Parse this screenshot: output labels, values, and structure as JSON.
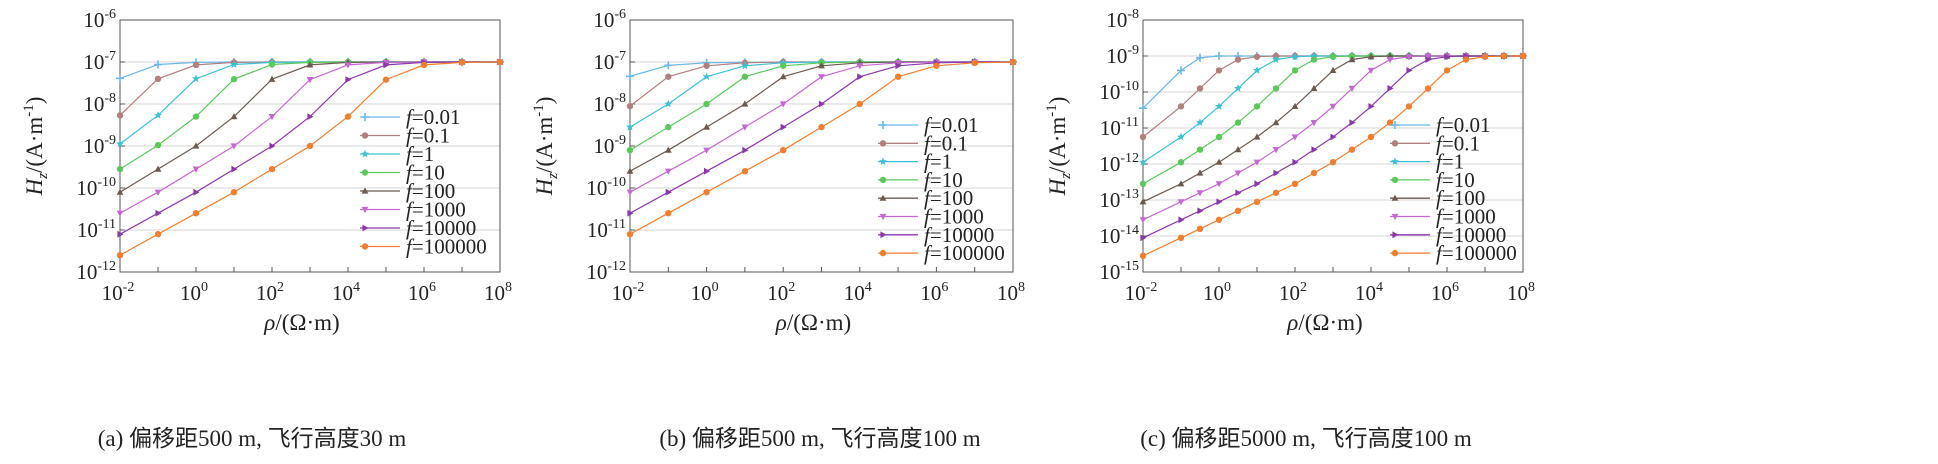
{
  "legend_prefix": "f",
  "legend_sep": "=",
  "series_styles": [
    {
      "color": "#6cb7e4",
      "marker": "plus"
    },
    {
      "color": "#b08080",
      "marker": "circle"
    },
    {
      "color": "#3fc0d2",
      "marker": "star"
    },
    {
      "color": "#5cc85c",
      "marker": "circle"
    },
    {
      "color": "#6b5a50",
      "marker": "triangle"
    },
    {
      "color": "#c36ad0",
      "marker": "tri-down"
    },
    {
      "color": "#8a3aa8",
      "marker": "tri-right"
    },
    {
      "color": "#f07f32",
      "marker": "circle"
    }
  ],
  "chart_data": [
    {
      "type": "line",
      "caption": "(a) 偏移距500 m, 飞行高度30 m",
      "xlabel_sym": "ρ",
      "xlabel_unit": "/(Ω·m)",
      "ylabel_sym": "H",
      "ylabel_sub": "z",
      "ylabel_unit": "/(A·m",
      "ylabel_sup": "-1",
      "ylabel_close": ")",
      "x_scale": "log",
      "y_scale": "log",
      "xlim_exp": [
        -2,
        8
      ],
      "ylim_exp": [
        -12,
        -6
      ],
      "x_tick_exps": [
        "-2",
        "0",
        "2",
        "4",
        "6",
        "8"
      ],
      "y_tick_exps": [
        "-12",
        "-11",
        "-10",
        "-9",
        "-8",
        "-7",
        "-6"
      ],
      "tick_base": "10",
      "legend_position": "center-right",
      "grid": "horizontal",
      "x_log_points": [
        -2,
        -1,
        0,
        1,
        2,
        3,
        4,
        5,
        6,
        7,
        8
      ],
      "series": [
        {
          "name": "0.01",
          "y_log": [
            -7.39,
            -7.06,
            -7.01,
            -7.0,
            -7.0,
            -7.0,
            -7.0,
            -7.0,
            -7.0,
            -7.0,
            -7.0
          ]
        },
        {
          "name": "0.1",
          "y_log": [
            -8.27,
            -7.4,
            -7.07,
            -7.01,
            -7.0,
            -7.0,
            -7.0,
            -7.0,
            -7.0,
            -7.0,
            -7.0
          ]
        },
        {
          "name": "1",
          "y_log": [
            -8.95,
            -8.27,
            -7.4,
            -7.06,
            -7.01,
            -7.0,
            -7.0,
            -7.0,
            -7.0,
            -7.0,
            -7.0
          ]
        },
        {
          "name": "10",
          "y_log": [
            -9.55,
            -8.98,
            -8.3,
            -7.41,
            -7.06,
            -7.01,
            -7.0,
            -7.0,
            -7.0,
            -7.0,
            -7.0
          ]
        },
        {
          "name": "100",
          "y_log": [
            -10.1,
            -9.55,
            -9.0,
            -8.3,
            -7.41,
            -7.07,
            -7.01,
            -7.0,
            -7.0,
            -7.0,
            -7.0
          ]
        },
        {
          "name": "1000",
          "y_log": [
            -10.6,
            -10.1,
            -9.55,
            -9.0,
            -8.3,
            -7.42,
            -7.07,
            -7.01,
            -7.0,
            -7.0,
            -7.0
          ]
        },
        {
          "name": "10000",
          "y_log": [
            -11.1,
            -10.6,
            -10.1,
            -9.55,
            -9.0,
            -8.3,
            -7.42,
            -7.07,
            -7.01,
            -7.0,
            -7.0
          ]
        },
        {
          "name": "100000",
          "y_log": [
            -11.6,
            -11.1,
            -10.6,
            -10.1,
            -9.55,
            -9.0,
            -8.3,
            -7.42,
            -7.07,
            -7.01,
            -7.0
          ]
        }
      ]
    },
    {
      "type": "line",
      "caption": "(b) 偏移距500 m, 飞行高度100 m",
      "xlabel_sym": "ρ",
      "xlabel_unit": "/(Ω·m)",
      "ylabel_sym": "H",
      "ylabel_sub": "z",
      "ylabel_unit": "/(A·m",
      "ylabel_sup": "-1",
      "ylabel_close": ")",
      "x_scale": "log",
      "y_scale": "log",
      "xlim_exp": [
        -2,
        8
      ],
      "ylim_exp": [
        -12,
        -6
      ],
      "x_tick_exps": [
        "-2",
        "0",
        "2",
        "4",
        "6",
        "8"
      ],
      "y_tick_exps": [
        "-12",
        "-11",
        "-10",
        "-9",
        "-8",
        "-7",
        "-6"
      ],
      "tick_base": "10",
      "legend_position": "lower-right",
      "grid": "horizontal",
      "x_log_points": [
        -2,
        -1,
        0,
        1,
        2,
        3,
        4,
        5,
        6,
        7,
        8
      ],
      "series": [
        {
          "name": "0.01",
          "y_log": [
            -7.34,
            -7.08,
            -7.02,
            -7.01,
            -7.0,
            -7.0,
            -7.0,
            -7.0,
            -7.0,
            -7.0,
            -7.0
          ]
        },
        {
          "name": "0.1",
          "y_log": [
            -8.05,
            -7.35,
            -7.09,
            -7.02,
            -7.0,
            -7.0,
            -7.0,
            -7.0,
            -7.0,
            -7.0,
            -7.0
          ]
        },
        {
          "name": "1",
          "y_log": [
            -8.55,
            -8.0,
            -7.35,
            -7.09,
            -7.02,
            -7.0,
            -7.0,
            -7.0,
            -7.0,
            -7.0,
            -7.0
          ]
        },
        {
          "name": "10",
          "y_log": [
            -9.1,
            -8.55,
            -8.0,
            -7.35,
            -7.09,
            -7.02,
            -7.0,
            -7.0,
            -7.0,
            -7.0,
            -7.0
          ]
        },
        {
          "name": "100",
          "y_log": [
            -9.6,
            -9.1,
            -8.55,
            -8.0,
            -7.35,
            -7.09,
            -7.02,
            -7.0,
            -7.0,
            -7.0,
            -7.0
          ]
        },
        {
          "name": "1000",
          "y_log": [
            -10.1,
            -9.6,
            -9.1,
            -8.55,
            -8.0,
            -7.35,
            -7.09,
            -7.02,
            -7.0,
            -7.0,
            -7.0
          ]
        },
        {
          "name": "10000",
          "y_log": [
            -10.6,
            -10.1,
            -9.6,
            -9.1,
            -8.55,
            -8.0,
            -7.35,
            -7.09,
            -7.02,
            -7.0,
            -7.0
          ]
        },
        {
          "name": "100000",
          "y_log": [
            -11.1,
            -10.6,
            -10.1,
            -9.6,
            -9.1,
            -8.55,
            -8.0,
            -7.35,
            -7.09,
            -7.02,
            -7.0
          ]
        }
      ]
    },
    {
      "type": "line",
      "caption": "(c) 偏移距5000 m, 飞行高度100 m",
      "xlabel_sym": "ρ",
      "xlabel_unit": "/(Ω·m)",
      "ylabel_sym": "H",
      "ylabel_sub": "z",
      "ylabel_unit": "/(A·m",
      "ylabel_sup": "-1",
      "ylabel_close": ")",
      "x_scale": "log",
      "y_scale": "log",
      "xlim_exp": [
        -2,
        8
      ],
      "ylim_exp": [
        -15,
        -8
      ],
      "x_tick_exps": [
        "-2",
        "0",
        "2",
        "4",
        "6",
        "8"
      ],
      "y_tick_exps": [
        "-15",
        "-14",
        "-13",
        "-12",
        "-11",
        "-10",
        "-9",
        "-8"
      ],
      "tick_base": "10",
      "legend_position": "lower-right",
      "grid": "horizontal",
      "x_log_points": [
        -2,
        -1,
        -0.5,
        0,
        0.5,
        1,
        1.5,
        2,
        2.5,
        3,
        3.5,
        4,
        4.5,
        5,
        5.5,
        6,
        6.5,
        7,
        7.5,
        8
      ],
      "series": [
        {
          "name": "0.01",
          "y_log": [
            -10.45,
            -9.4,
            -9.05,
            -9.0,
            -9.0,
            -9.0,
            -9.0,
            -9.0,
            -9.0,
            -9.0,
            -9.0,
            -9.0,
            -9.0,
            -9.0,
            -9.0,
            -9.0,
            -9.0,
            -9.0,
            -9.0,
            -9.0
          ]
        },
        {
          "name": "0.1",
          "y_log": [
            -11.25,
            -10.4,
            -9.9,
            -9.4,
            -9.1,
            -9.02,
            -9.0,
            -9.0,
            -9.0,
            -9.0,
            -9.0,
            -9.0,
            -9.0,
            -9.0,
            -9.0,
            -9.0,
            -9.0,
            -9.0,
            -9.0,
            -9.0
          ]
        },
        {
          "name": "1",
          "y_log": [
            -11.95,
            -11.25,
            -10.85,
            -10.4,
            -9.9,
            -9.4,
            -9.1,
            -9.02,
            -9.0,
            -9.0,
            -9.0,
            -9.0,
            -9.0,
            -9.0,
            -9.0,
            -9.0,
            -9.0,
            -9.0,
            -9.0,
            -9.0
          ]
        },
        {
          "name": "10",
          "y_log": [
            -12.55,
            -11.95,
            -11.6,
            -11.25,
            -10.85,
            -10.4,
            -9.9,
            -9.4,
            -9.1,
            -9.02,
            -9.0,
            -9.0,
            -9.0,
            -9.0,
            -9.0,
            -9.0,
            -9.0,
            -9.0,
            -9.0,
            -9.0
          ]
        },
        {
          "name": "100",
          "y_log": [
            -13.05,
            -12.55,
            -12.25,
            -11.95,
            -11.6,
            -11.25,
            -10.85,
            -10.4,
            -9.9,
            -9.4,
            -9.1,
            -9.02,
            -9.0,
            -9.0,
            -9.0,
            -9.0,
            -9.0,
            -9.0,
            -9.0,
            -9.0
          ]
        },
        {
          "name": "1000",
          "y_log": [
            -13.55,
            -13.05,
            -12.8,
            -12.55,
            -12.25,
            -11.95,
            -11.6,
            -11.25,
            -10.85,
            -10.4,
            -9.9,
            -9.4,
            -9.1,
            -9.02,
            -9.0,
            -9.0,
            -9.0,
            -9.0,
            -9.0,
            -9.0
          ]
        },
        {
          "name": "10000",
          "y_log": [
            -14.05,
            -13.55,
            -13.3,
            -13.05,
            -12.8,
            -12.55,
            -12.25,
            -11.95,
            -11.6,
            -11.25,
            -10.85,
            -10.4,
            -9.9,
            -9.4,
            -9.1,
            -9.02,
            -9.0,
            -9.0,
            -9.0,
            -9.0
          ]
        },
        {
          "name": "100000",
          "y_log": [
            -14.55,
            -14.05,
            -13.8,
            -13.55,
            -13.3,
            -13.05,
            -12.8,
            -12.55,
            -12.25,
            -11.95,
            -11.6,
            -11.25,
            -10.85,
            -10.4,
            -9.9,
            -9.4,
            -9.1,
            -9.02,
            -9.0,
            -9.0
          ]
        }
      ]
    }
  ]
}
